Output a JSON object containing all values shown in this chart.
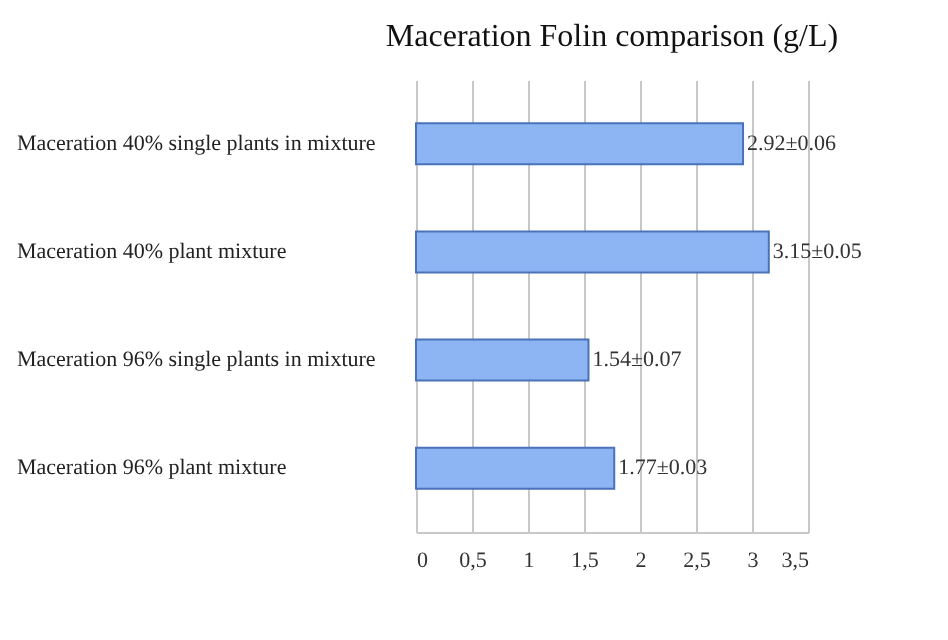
{
  "chart_data": {
    "type": "bar",
    "orientation": "horizontal",
    "title": "Maceration Folin comparison (g/L)",
    "categories": [
      "Maceration 40% single plants in mixture",
      "Maceration 40% plant mixture",
      "Maceration 96% single plants in mixture",
      "Maceration 96% plant mixture"
    ],
    "values": [
      2.92,
      3.15,
      1.54,
      1.77
    ],
    "value_labels": [
      "2.92±0.06",
      "3.15±0.05",
      "1.54±0.07",
      "1.77±0.03"
    ],
    "color": "#8db4f3",
    "xlim": [
      0,
      3.5
    ],
    "xticks": [
      0,
      {
        "value": 0.5,
        "label": "0,5"
      },
      1,
      {
        "value": 1.5,
        "label": "1,5"
      },
      2,
      {
        "value": 2.5,
        "label": "2,5"
      },
      3,
      {
        "value": 3.5,
        "label": "3,5"
      }
    ],
    "grid": "x"
  }
}
